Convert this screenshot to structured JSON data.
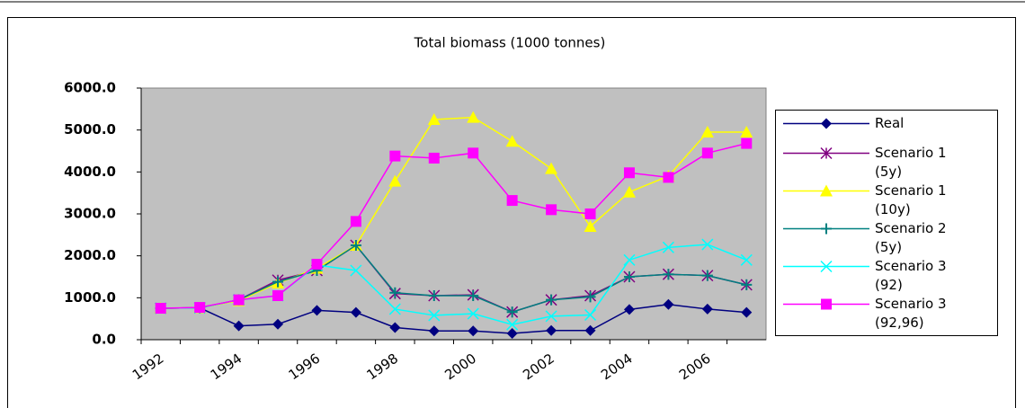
{
  "chart_data": {
    "type": "line",
    "title": "Total biomass (1000 tonnes)",
    "categories": [
      "1992",
      null,
      "1994",
      null,
      "1996",
      null,
      "1998",
      null,
      "2000",
      null,
      "2002",
      null,
      "2004",
      null,
      "2006",
      null
    ],
    "ylim": [
      0,
      6000
    ],
    "yticks": [
      {
        "value": 0,
        "label": "0.0"
      },
      {
        "value": 1000,
        "label": "1000.0"
      },
      {
        "value": 2000,
        "label": "2000.0"
      },
      {
        "value": 3000,
        "label": "3000.0"
      },
      {
        "value": 4000,
        "label": "4000.0"
      },
      {
        "value": 5000,
        "label": "5000.0"
      },
      {
        "value": 6000,
        "label": "6000.0"
      }
    ],
    "grid": false,
    "legend": "right",
    "series": [
      {
        "name": "Real",
        "color": "#000080",
        "marker": "diamond",
        "values": [
          750,
          760,
          330,
          370,
          700,
          650,
          290,
          210,
          210,
          150,
          220,
          220,
          720,
          840,
          730,
          650
        ]
      },
      {
        "name": "Scenario 1 (5y)",
        "color": "#800080",
        "marker": "asterisk",
        "values": [
          750,
          760,
          950,
          1420,
          1650,
          2250,
          1100,
          1050,
          1070,
          660,
          950,
          1050,
          1500,
          1560,
          1530,
          1310
        ]
      },
      {
        "name": "Scenario 1 (10y)",
        "color": "#ffff00",
        "marker": "triangle",
        "values": [
          750,
          760,
          930,
          1350,
          1700,
          2250,
          3780,
          5250,
          5300,
          4730,
          4080,
          2700,
          3520,
          3900,
          4950,
          4950
        ]
      },
      {
        "name": "Scenario 2 (5y)",
        "color": "#008080",
        "marker": "plus",
        "values": [
          750,
          760,
          950,
          1380,
          1650,
          2250,
          1120,
          1050,
          1050,
          660,
          950,
          1020,
          1500,
          1560,
          1530,
          1310
        ]
      },
      {
        "name": "Scenario 3 (92)",
        "color": "#00ffff",
        "marker": "cross",
        "values": [
          750,
          760,
          950,
          1050,
          1780,
          1650,
          730,
          580,
          620,
          360,
          560,
          590,
          1900,
          2200,
          2270,
          1900
        ]
      },
      {
        "name": "Scenario 3 (92,96)",
        "color": "#ff00ff",
        "marker": "square",
        "values": [
          750,
          770,
          950,
          1050,
          1800,
          2820,
          4380,
          4330,
          4450,
          3320,
          3100,
          3000,
          3980,
          3870,
          4450,
          4680
        ]
      }
    ]
  }
}
